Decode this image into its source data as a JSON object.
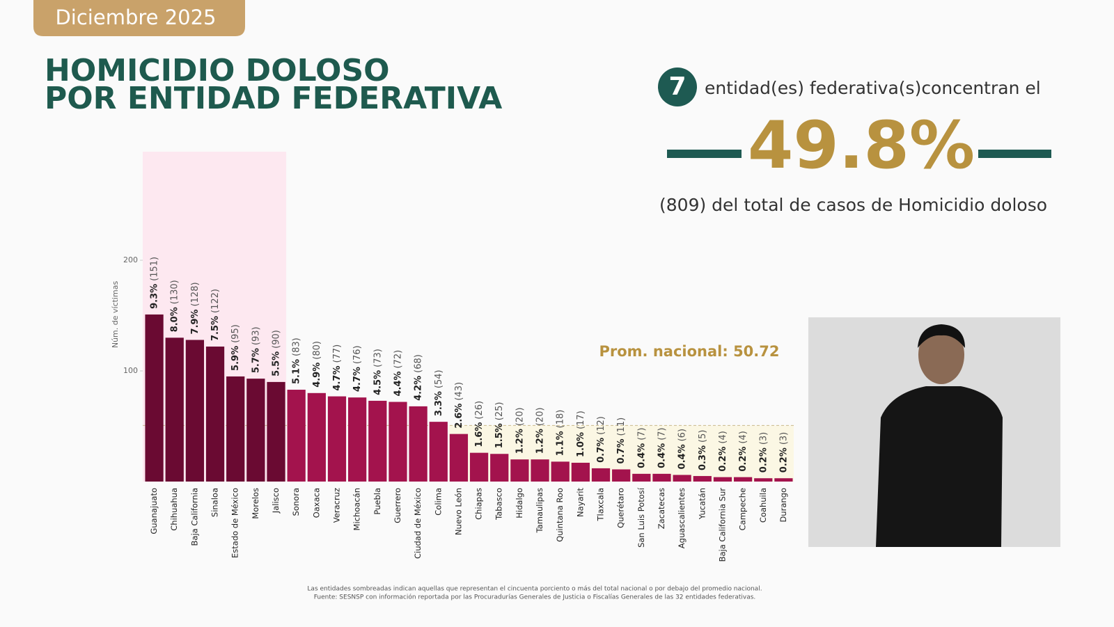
{
  "header": {
    "date": "Diciembre 2025",
    "title": [
      "HOMICIDIO DOLOSO",
      "POR ENTIDAD FEDERATIVA"
    ],
    "count_text": "entidad(es) federativa(s)concentran el",
    "percent": "49.8%",
    "total_text": "(809) del total de casos de Homicidio doloso"
  },
  "footnotes": [
    "Las entidades sombreadas indican aquellas que representan el cincuenta porciento o más del total nacional o por debajo del promedio nacional.",
    "Fuente: SESNSP con información reportada por las Procuradurías Generales de Justicia o Fiscalías Generales de las 32 entidades federativas."
  ],
  "chart_data": {
    "type": "bar",
    "y_label": "Núm. de víctimas",
    "categories": [
      "Guanajuato",
      "Chihuahua",
      "Baja California",
      "Sinaloa",
      "Estado de México",
      "Morelos",
      "Jalisco",
      "Sonora",
      "Oaxaca",
      "Veracruz",
      "Michoacán",
      "Puebla",
      "Guerrero",
      "Ciudad de México",
      "Colima",
      "Nuevo León",
      "Chiapas",
      "Tabasco",
      "Hidalgo",
      "Tamaulipas",
      "Quintana Roo",
      "Nayarit",
      "Tlaxcala",
      "Querétaro",
      "San Luis Potosí",
      "Zacatecas",
      "Aguascalientes",
      "Yucatán",
      "Baja California Sur",
      "Campeche",
      "Coahuila",
      "Durango"
    ],
    "values": [
      151,
      130,
      128,
      122,
      95,
      93,
      90,
      83,
      80,
      77,
      76,
      73,
      72,
      68,
      54,
      43,
      26,
      25,
      20,
      20,
      18,
      17,
      12,
      11,
      7,
      7,
      6,
      5,
      4,
      4,
      3,
      3
    ],
    "value_labels": [
      "(151)",
      "(130)",
      "(128)",
      "(122)",
      "(95)",
      "(93)",
      "(90)",
      "(83)",
      "(80)",
      "(77)",
      "(76)",
      "(73)",
      "(72)",
      "(68)",
      "(54)",
      "(43)",
      "(26)",
      "(25)",
      "(20)",
      "(20)",
      "(18)",
      "(17)",
      "(12)",
      "(11)",
      "(7)",
      "(7)",
      "(6)",
      "(5)",
      "(4)",
      "(4)",
      "(3)",
      "(3)"
    ],
    "percent_labels": [
      "9.3%",
      "8.0%",
      "7.9%",
      "7.5%",
      "5.9%",
      "5.7%",
      "5.5%",
      "5.1%",
      "4.9%",
      "4.7%",
      "4.7%",
      "4.5%",
      "4.4%",
      "4.2%",
      "3.3%",
      "2.6%",
      "1.6%",
      "1.5%",
      "1.2%",
      "1.2%",
      "1.1%",
      "1.0%",
      "0.7%",
      "0.7%",
      "0.4%",
      "0.4%",
      "0.4%",
      "0.3%",
      "0.2%",
      "0.2%",
      "0.2%",
      "0.2%"
    ],
    "highlight_count": 7,
    "color": "#a3134d",
    "highlight_color": "#6a0a32",
    "average": 50.72,
    "average_label": "Prom. nacional: 50.72",
    "ylim": [
      0,
      300
    ],
    "yticks": [
      100,
      200
    ]
  }
}
